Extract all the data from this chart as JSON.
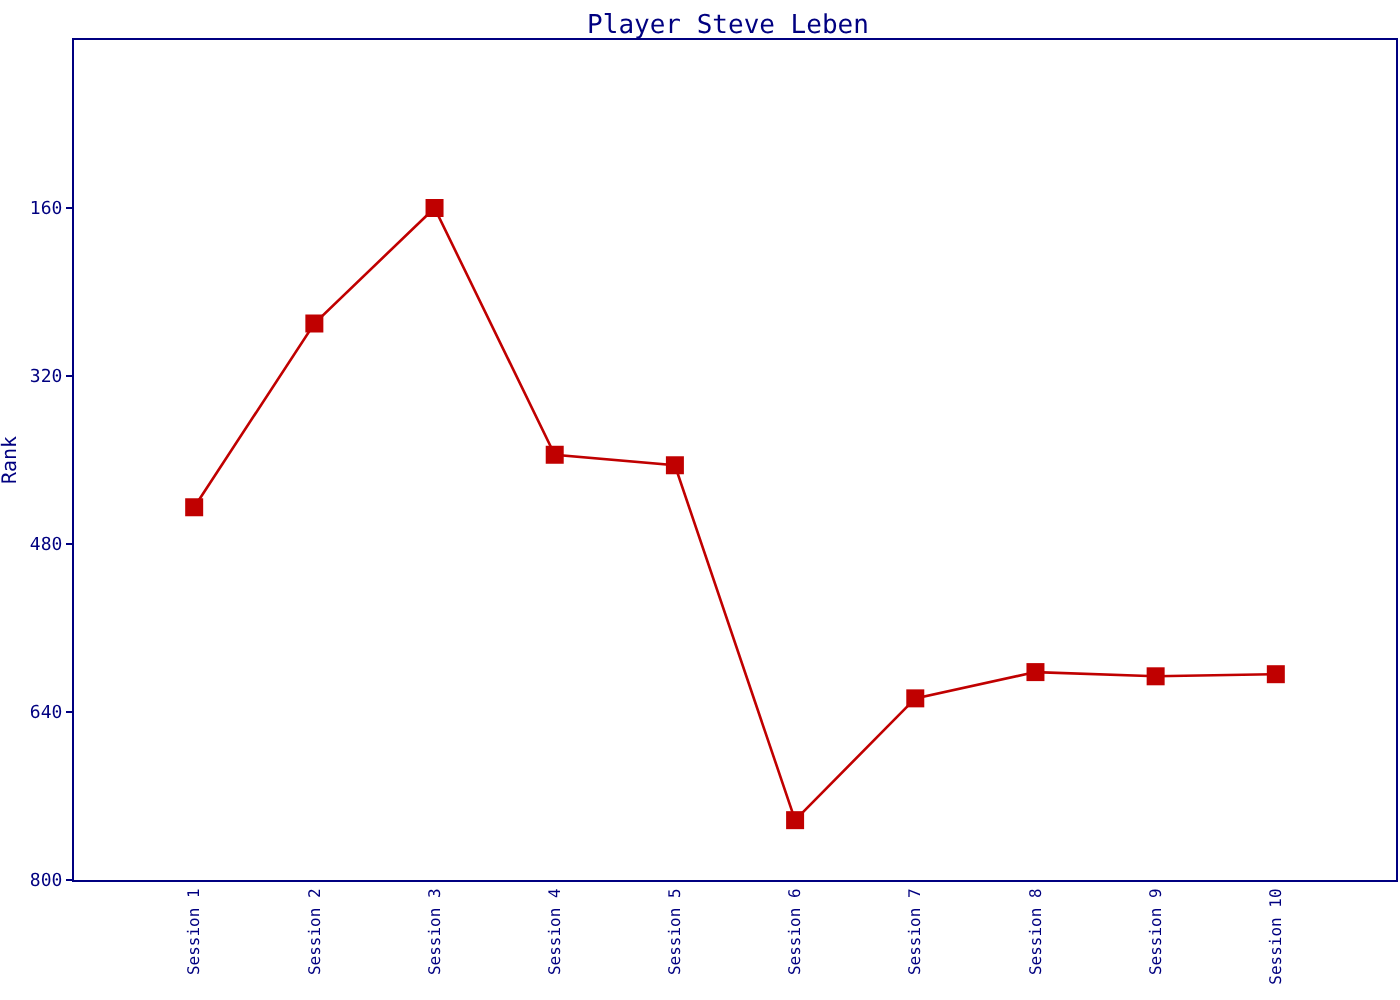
{
  "chart_data": {
    "type": "line",
    "title": "Player Steve Leben",
    "ylabel": "Rank",
    "categories": [
      "Session 1",
      "Session 2",
      "Session 3",
      "Session 4",
      "Session 5",
      "Session 6",
      "Session 7",
      "Session 8",
      "Session 9",
      "Session 10"
    ],
    "series": [
      {
        "color": "#c00000",
        "values": [
          445,
          270,
          160,
          395,
          405,
          743,
          627,
          602,
          606,
          604
        ]
      }
    ],
    "ylim": [
      800,
      0
    ],
    "yticks": [
      160,
      320,
      480,
      640,
      800
    ],
    "grid": false,
    "legend": false,
    "marker": "square",
    "line_style": "solid"
  }
}
